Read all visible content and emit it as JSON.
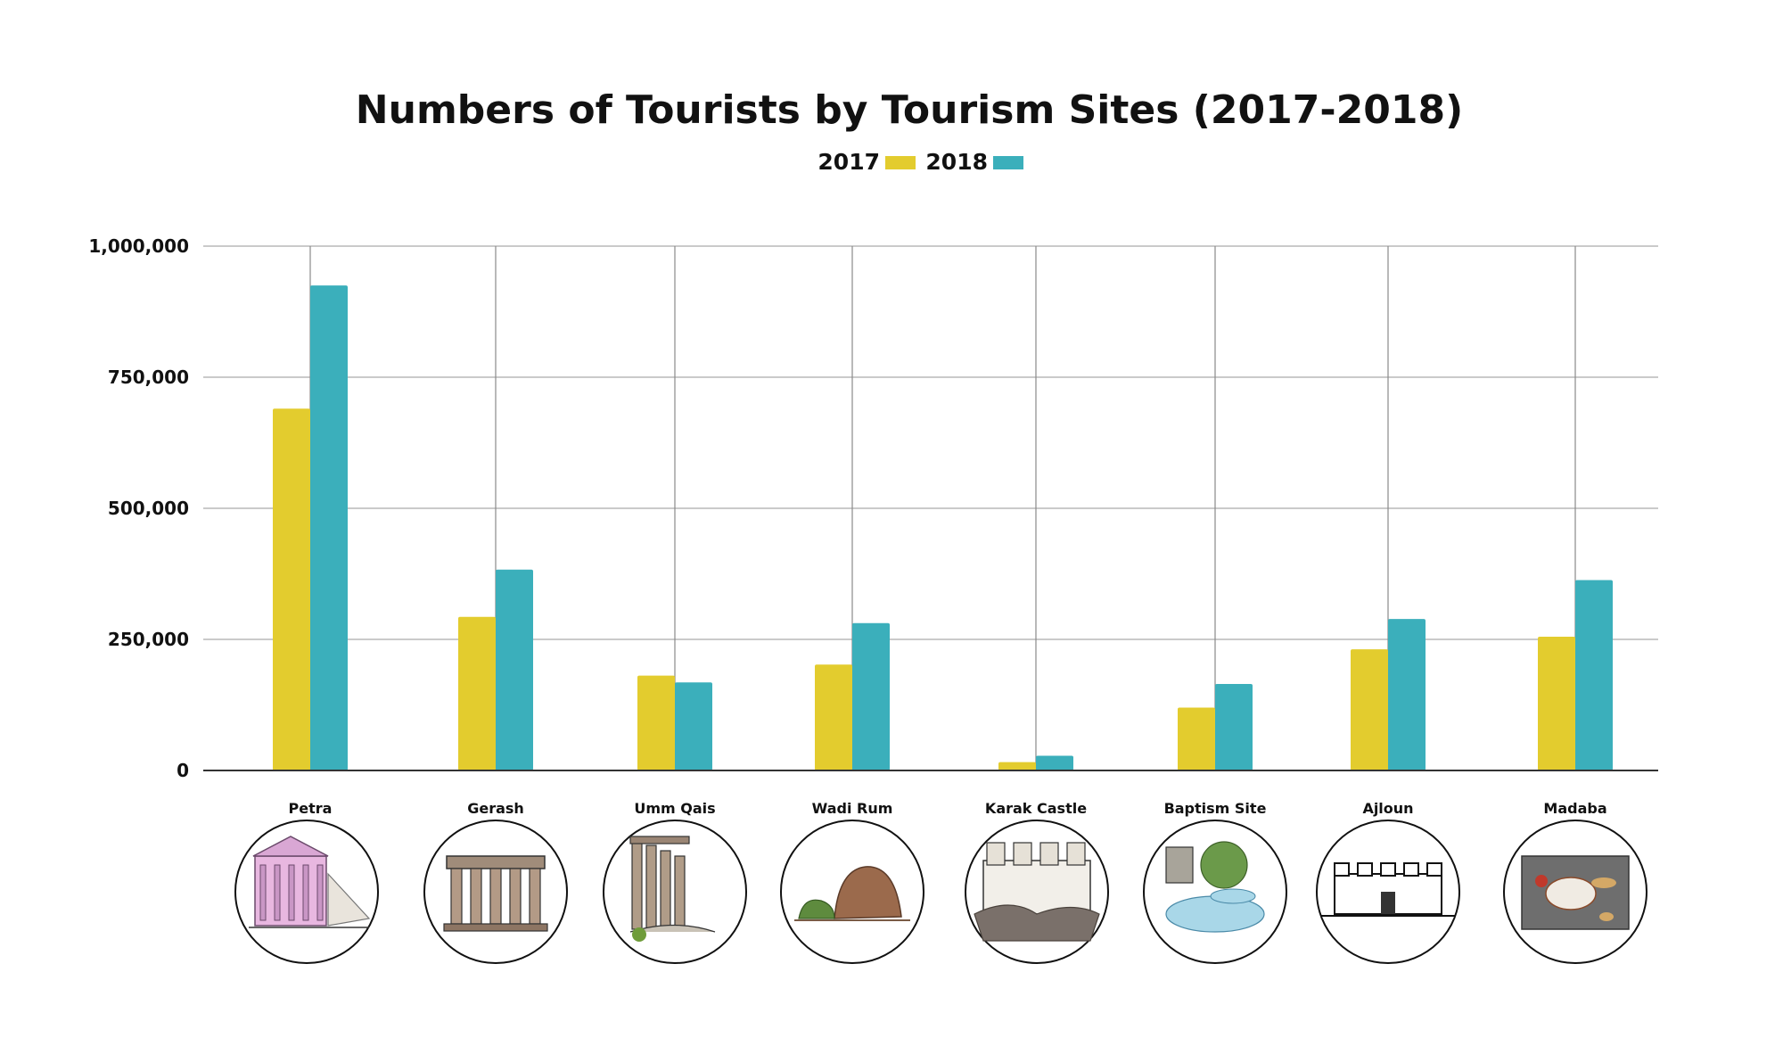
{
  "chart_data": {
    "type": "bar",
    "title": "Numbers of Tourists by Tourism Sites (2017-2018)",
    "xlabel": "",
    "ylabel": "",
    "categories": [
      "Petra",
      "Gerash",
      "Umm Qais",
      "Wadi Rum",
      "Karak Castle",
      "Baptism Site",
      "Ajloun",
      "Madaba"
    ],
    "series": [
      {
        "name": "2017",
        "color": "#e3cc2e",
        "values": [
          690000,
          293000,
          181000,
          202000,
          16000,
          120000,
          231000,
          255000
        ]
      },
      {
        "name": "2018",
        "color": "#3bafbb",
        "values": [
          925000,
          383000,
          168000,
          281000,
          28000,
          165000,
          289000,
          363000
        ]
      }
    ],
    "ylim": [
      0,
      1000000
    ],
    "yticks": [
      0,
      250000,
      500000,
      750000,
      1000000
    ],
    "ytick_labels": [
      "0",
      "250,000",
      "500,000",
      "750,000",
      "1,000,000"
    ],
    "grid": true,
    "legend": "top-center",
    "category_icons": [
      "petra-treasury-icon",
      "gerash-columns-icon",
      "umm-qais-columns-icon",
      "wadi-rum-rocks-icon",
      "karak-castle-icon",
      "baptism-site-icon",
      "ajloun-castle-icon",
      "madaba-mosaic-icon"
    ]
  }
}
